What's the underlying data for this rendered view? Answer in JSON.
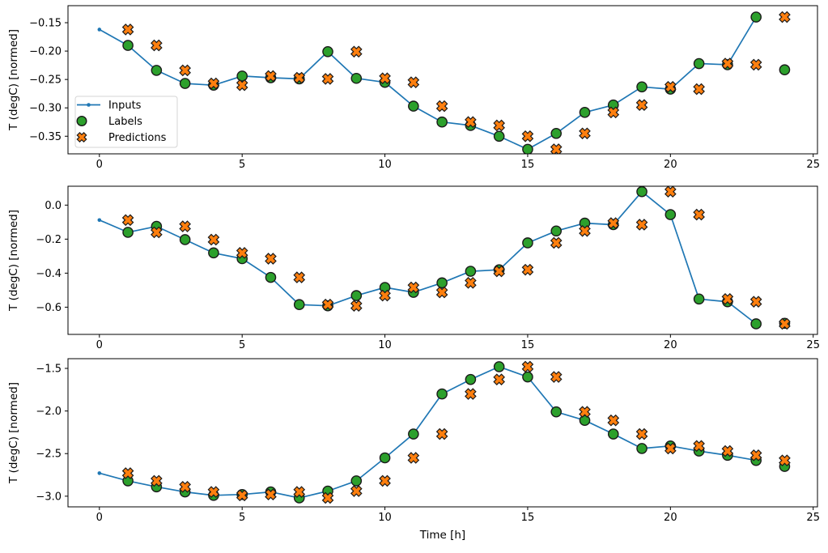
{
  "figure": {
    "xlabel": "Time [h]",
    "ylabel": "T (degC) [normed]",
    "legend": {
      "entries": [
        "Inputs",
        "Labels",
        "Predictions"
      ],
      "position": "upper-left-of-first-subplot"
    },
    "colors": {
      "inputs_line": "#1f77b4",
      "labels_marker": "#2ca02c",
      "predictions_marker": "#ff7f0e",
      "marker_edge": "#1a1a1a",
      "spine": "#000000",
      "legend_border": "#d4d4d4"
    }
  },
  "chart_data": [
    {
      "type": "line",
      "subplot": 1,
      "ylabel": "T (degC) [normed]",
      "xlabel": "",
      "xlim": [
        -1.1,
        25.15
      ],
      "ylim": [
        -0.381,
        -0.12
      ],
      "xticks": {
        "values": [
          0,
          5,
          10,
          15,
          20,
          25
        ],
        "labels": [
          "0",
          "5",
          "10",
          "15",
          "20",
          "25"
        ]
      },
      "yticks": {
        "values": [
          -0.15,
          -0.2,
          -0.25,
          -0.3,
          -0.35
        ],
        "labels": [
          "−0.15",
          "−0.20",
          "−0.25",
          "−0.30",
          "−0.35"
        ]
      },
      "legend": true,
      "grid": false,
      "series": [
        {
          "name": "Inputs",
          "type": "line",
          "marker": "dot",
          "color": "#1f77b4",
          "x": [
            0,
            1,
            2,
            3,
            4,
            5,
            6,
            7,
            8,
            9,
            10,
            11,
            12,
            13,
            14,
            15,
            16,
            17,
            18,
            19,
            20,
            21,
            22,
            23
          ],
          "y": [
            -0.162,
            -0.19,
            -0.234,
            -0.257,
            -0.26,
            -0.244,
            -0.247,
            -0.249,
            -0.201,
            -0.248,
            -0.255,
            -0.297,
            -0.325,
            -0.331,
            -0.35,
            -0.373,
            -0.345,
            -0.308,
            -0.295,
            -0.263,
            -0.267,
            -0.222,
            -0.224,
            -0.14
          ]
        },
        {
          "name": "Labels",
          "type": "scatter",
          "marker": "circle",
          "color": "#2ca02c",
          "edge": "#1a1a1a",
          "x": [
            1,
            2,
            3,
            4,
            5,
            6,
            7,
            8,
            9,
            10,
            11,
            12,
            13,
            14,
            15,
            16,
            17,
            18,
            19,
            20,
            21,
            22,
            23,
            24
          ],
          "y": [
            -0.19,
            -0.234,
            -0.257,
            -0.26,
            -0.244,
            -0.247,
            -0.249,
            -0.201,
            -0.248,
            -0.255,
            -0.297,
            -0.325,
            -0.331,
            -0.35,
            -0.373,
            -0.345,
            -0.308,
            -0.295,
            -0.263,
            -0.267,
            -0.222,
            -0.224,
            -0.14,
            -0.233
          ]
        },
        {
          "name": "Predictions",
          "type": "scatter",
          "marker": "X",
          "color": "#ff7f0e",
          "edge": "#1a1a1a",
          "x": [
            1,
            2,
            3,
            4,
            5,
            6,
            7,
            8,
            9,
            10,
            11,
            12,
            13,
            14,
            15,
            16,
            17,
            18,
            19,
            20,
            21,
            22,
            23,
            24
          ],
          "y": [
            -0.162,
            -0.19,
            -0.234,
            -0.257,
            -0.26,
            -0.244,
            -0.247,
            -0.249,
            -0.201,
            -0.248,
            -0.255,
            -0.297,
            -0.325,
            -0.331,
            -0.35,
            -0.373,
            -0.345,
            -0.308,
            -0.295,
            -0.263,
            -0.267,
            -0.222,
            -0.224,
            -0.14
          ]
        }
      ]
    },
    {
      "type": "line",
      "subplot": 2,
      "ylabel": "T (degC) [normed]",
      "xlabel": "",
      "xlim": [
        -1.1,
        25.15
      ],
      "ylim": [
        -0.76,
        0.111
      ],
      "xticks": {
        "values": [
          0,
          5,
          10,
          15,
          20,
          25
        ],
        "labels": [
          "0",
          "5",
          "10",
          "15",
          "20",
          "25"
        ]
      },
      "yticks": {
        "values": [
          0.0,
          -0.2,
          -0.4,
          -0.6
        ],
        "labels": [
          "0.0",
          "−0.2",
          "−0.4",
          "−0.6"
        ]
      },
      "legend": false,
      "grid": false,
      "series": [
        {
          "name": "Inputs",
          "type": "line",
          "marker": "dot",
          "color": "#1f77b4",
          "x": [
            0,
            1,
            2,
            3,
            4,
            5,
            6,
            7,
            8,
            9,
            10,
            11,
            12,
            13,
            14,
            15,
            16,
            17,
            18,
            19,
            20,
            21,
            22,
            23
          ],
          "y": [
            -0.088,
            -0.16,
            -0.125,
            -0.203,
            -0.281,
            -0.315,
            -0.425,
            -0.585,
            -0.592,
            -0.532,
            -0.484,
            -0.513,
            -0.457,
            -0.389,
            -0.38,
            -0.222,
            -0.152,
            -0.106,
            -0.115,
            0.079,
            -0.056,
            -0.552,
            -0.568,
            -0.698
          ]
        },
        {
          "name": "Labels",
          "type": "scatter",
          "marker": "circle",
          "color": "#2ca02c",
          "edge": "#1a1a1a",
          "x": [
            1,
            2,
            3,
            4,
            5,
            6,
            7,
            8,
            9,
            10,
            11,
            12,
            13,
            14,
            15,
            16,
            17,
            18,
            19,
            20,
            21,
            22,
            23,
            24
          ],
          "y": [
            -0.16,
            -0.125,
            -0.203,
            -0.281,
            -0.315,
            -0.425,
            -0.585,
            -0.592,
            -0.532,
            -0.484,
            -0.513,
            -0.457,
            -0.389,
            -0.38,
            -0.222,
            -0.152,
            -0.106,
            -0.115,
            0.079,
            -0.056,
            -0.552,
            -0.568,
            -0.698,
            -0.695
          ]
        },
        {
          "name": "Predictions",
          "type": "scatter",
          "marker": "X",
          "color": "#ff7f0e",
          "edge": "#1a1a1a",
          "x": [
            1,
            2,
            3,
            4,
            5,
            6,
            7,
            8,
            9,
            10,
            11,
            12,
            13,
            14,
            15,
            16,
            17,
            18,
            19,
            20,
            21,
            22,
            23,
            24
          ],
          "y": [
            -0.088,
            -0.16,
            -0.125,
            -0.203,
            -0.281,
            -0.315,
            -0.425,
            -0.585,
            -0.592,
            -0.532,
            -0.484,
            -0.513,
            -0.457,
            -0.389,
            -0.38,
            -0.222,
            -0.152,
            -0.106,
            -0.115,
            0.079,
            -0.056,
            -0.552,
            -0.568,
            -0.698
          ]
        }
      ]
    },
    {
      "type": "line",
      "subplot": 3,
      "ylabel": "T (degC) [normed]",
      "xlabel": "Time [h]",
      "xlim": [
        -1.1,
        25.15
      ],
      "ylim": [
        -3.125,
        -1.386
      ],
      "xticks": {
        "values": [
          0,
          5,
          10,
          15,
          20,
          25
        ],
        "labels": [
          "0",
          "5",
          "10",
          "15",
          "20",
          "25"
        ]
      },
      "yticks": {
        "values": [
          -1.5,
          -2.0,
          -2.5,
          -3.0
        ],
        "labels": [
          "−1.5",
          "−2.0",
          "−2.5",
          "−3.0"
        ]
      },
      "legend": false,
      "grid": false,
      "series": [
        {
          "name": "Inputs",
          "type": "line",
          "marker": "dot",
          "color": "#1f77b4",
          "x": [
            0,
            1,
            2,
            3,
            4,
            5,
            6,
            7,
            8,
            9,
            10,
            11,
            12,
            13,
            14,
            15,
            16,
            17,
            18,
            19,
            20,
            21,
            22,
            23
          ],
          "y": [
            -2.73,
            -2.82,
            -2.89,
            -2.95,
            -2.99,
            -2.98,
            -2.95,
            -3.02,
            -2.94,
            -2.82,
            -2.55,
            -2.27,
            -1.8,
            -1.63,
            -1.48,
            -1.6,
            -2.01,
            -2.11,
            -2.27,
            -2.44,
            -2.41,
            -2.47,
            -2.52,
            -2.58
          ]
        },
        {
          "name": "Labels",
          "type": "scatter",
          "marker": "circle",
          "color": "#2ca02c",
          "edge": "#1a1a1a",
          "x": [
            1,
            2,
            3,
            4,
            5,
            6,
            7,
            8,
            9,
            10,
            11,
            12,
            13,
            14,
            15,
            16,
            17,
            18,
            19,
            20,
            21,
            22,
            23,
            24
          ],
          "y": [
            -2.82,
            -2.89,
            -2.95,
            -2.99,
            -2.98,
            -2.95,
            -3.02,
            -2.94,
            -2.82,
            -2.55,
            -2.27,
            -1.8,
            -1.63,
            -1.48,
            -1.6,
            -2.01,
            -2.11,
            -2.27,
            -2.44,
            -2.41,
            -2.47,
            -2.52,
            -2.58,
            -2.65
          ]
        },
        {
          "name": "Predictions",
          "type": "scatter",
          "marker": "X",
          "color": "#ff7f0e",
          "edge": "#1a1a1a",
          "x": [
            1,
            2,
            3,
            4,
            5,
            6,
            7,
            8,
            9,
            10,
            11,
            12,
            13,
            14,
            15,
            16,
            17,
            18,
            19,
            20,
            21,
            22,
            23,
            24
          ],
          "y": [
            -2.73,
            -2.82,
            -2.89,
            -2.95,
            -2.99,
            -2.98,
            -2.95,
            -3.02,
            -2.94,
            -2.82,
            -2.55,
            -2.27,
            -1.8,
            -1.63,
            -1.48,
            -1.6,
            -2.01,
            -2.11,
            -2.27,
            -2.44,
            -2.41,
            -2.47,
            -2.52,
            -2.58
          ]
        }
      ]
    }
  ]
}
